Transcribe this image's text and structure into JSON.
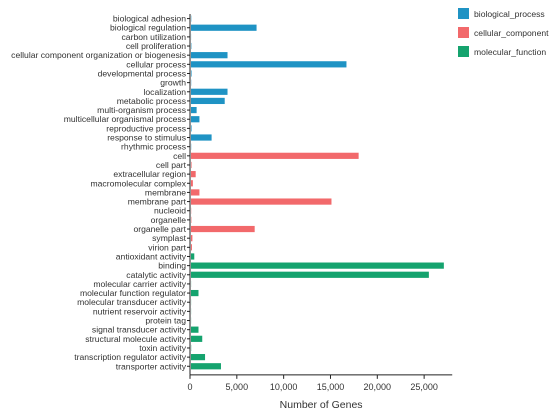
{
  "chart_data": {
    "type": "bar",
    "orientation": "horizontal",
    "xlabel": "Number of Genes",
    "xlim": [
      0,
      28000
    ],
    "x_ticks": [
      0,
      5000,
      10000,
      15000,
      20000,
      25000
    ],
    "x_tick_labels": [
      "0",
      "5,000",
      "10,000",
      "15,000",
      "20,000",
      "25,000"
    ],
    "grid": false,
    "legend_position": "top-right",
    "series": [
      {
        "name": "biological_process",
        "color": "#1f93c4"
      },
      {
        "name": "cellular_component",
        "color": "#f2696b"
      },
      {
        "name": "molecular_function",
        "color": "#15a36e"
      }
    ],
    "categories": [
      {
        "label": "biological adhesion",
        "value": 30,
        "series": 0
      },
      {
        "label": "biological regulation",
        "value": 7000,
        "series": 0
      },
      {
        "label": "carbon utilization",
        "value": 10,
        "series": 0
      },
      {
        "label": "cell proliferation",
        "value": 40,
        "series": 0
      },
      {
        "label": "cellular component organization or biogenesis",
        "value": 3900,
        "series": 0
      },
      {
        "label": "cellular process",
        "value": 16600,
        "series": 0
      },
      {
        "label": "developmental process",
        "value": 60,
        "series": 0
      },
      {
        "label": "growth",
        "value": 20,
        "series": 0
      },
      {
        "label": "localization",
        "value": 3900,
        "series": 0
      },
      {
        "label": "metabolic process",
        "value": 3600,
        "series": 0
      },
      {
        "label": "multi-organism process",
        "value": 600,
        "series": 0
      },
      {
        "label": "multicellular organismal process",
        "value": 900,
        "series": 0
      },
      {
        "label": "reproductive process",
        "value": 60,
        "series": 0
      },
      {
        "label": "response to stimulus",
        "value": 2200,
        "series": 0
      },
      {
        "label": "rhythmic process",
        "value": 20,
        "series": 0
      },
      {
        "label": "cell",
        "value": 17900,
        "series": 1
      },
      {
        "label": "cell part",
        "value": 60,
        "series": 1
      },
      {
        "label": "extracellular region",
        "value": 500,
        "series": 1
      },
      {
        "label": "macromolecular complex",
        "value": 200,
        "series": 1
      },
      {
        "label": "membrane",
        "value": 900,
        "series": 1
      },
      {
        "label": "membrane part",
        "value": 15000,
        "series": 1
      },
      {
        "label": "nucleoid",
        "value": 20,
        "series": 1
      },
      {
        "label": "organelle",
        "value": 40,
        "series": 1
      },
      {
        "label": "organelle part",
        "value": 6800,
        "series": 1
      },
      {
        "label": "symplast",
        "value": 150,
        "series": 1
      },
      {
        "label": "virion part",
        "value": 100,
        "series": 1
      },
      {
        "label": "antioxidant activity",
        "value": 350,
        "series": 2
      },
      {
        "label": "binding",
        "value": 27000,
        "series": 2
      },
      {
        "label": "catalytic activity",
        "value": 25400,
        "series": 2
      },
      {
        "label": "molecular carrier activity",
        "value": 10,
        "series": 2
      },
      {
        "label": "molecular function regulator",
        "value": 800,
        "series": 2
      },
      {
        "label": "molecular transducer activity",
        "value": 10,
        "series": 2
      },
      {
        "label": "nutrient reservoir activity",
        "value": 10,
        "series": 2
      },
      {
        "label": "protein tag",
        "value": 10,
        "series": 2
      },
      {
        "label": "signal transducer activity",
        "value": 800,
        "series": 2
      },
      {
        "label": "structural molecule activity",
        "value": 1200,
        "series": 2
      },
      {
        "label": "toxin activity",
        "value": 20,
        "series": 2
      },
      {
        "label": "transcription regulator activity",
        "value": 1500,
        "series": 2
      },
      {
        "label": "transporter activity",
        "value": 3200,
        "series": 2
      }
    ]
  }
}
